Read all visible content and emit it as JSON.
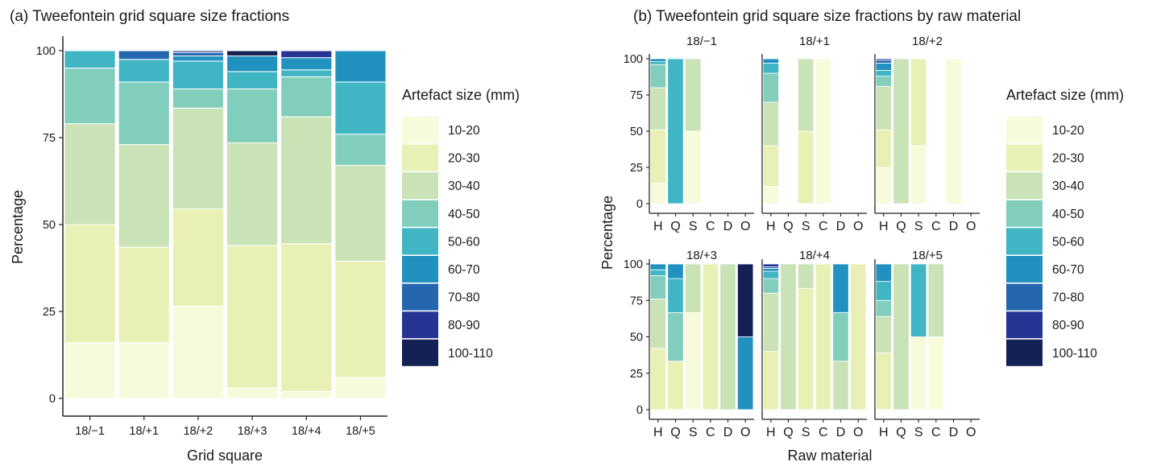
{
  "legend_colors": {
    "10-20": "#f7fbdb",
    "20-30": "#e9f0b5",
    "30-40": "#c9e2b6",
    "40-50": "#82cebc",
    "50-60": "#40b6c4",
    "60-70": "#2191c0",
    "70-80": "#2467af",
    "80-90": "#263594",
    "100-110": "#152055"
  },
  "chart_data": [
    {
      "type": "bar",
      "stacked": true,
      "title": "(a) Tweefontein grid square size fractions",
      "xlabel": "Grid square",
      "ylabel": "Percentage",
      "ylim": [
        0,
        100
      ],
      "yticks": [
        "0",
        "25",
        "50",
        "75",
        "100"
      ],
      "categories": [
        "18/−1",
        "18/+1",
        "18/+2",
        "18/+3",
        "18/+4",
        "18/+5"
      ],
      "legend_title": "Artefact size (mm)",
      "legend_position": "right",
      "series": [
        {
          "name": "10-20",
          "values": [
            16,
            16,
            26.5,
            3,
            2,
            6
          ]
        },
        {
          "name": "20-30",
          "values": [
            34,
            27.5,
            28,
            41,
            42.5,
            33.5
          ]
        },
        {
          "name": "30-40",
          "values": [
            29,
            29.5,
            29,
            29.5,
            36.5,
            27.5
          ]
        },
        {
          "name": "40-50",
          "values": [
            16,
            18,
            5.5,
            15.5,
            11.5,
            9
          ]
        },
        {
          "name": "50-60",
          "values": [
            5,
            6.5,
            8,
            5,
            2,
            15
          ]
        },
        {
          "name": "60-70",
          "values": [
            0,
            0,
            1.5,
            4.5,
            3.5,
            9
          ]
        },
        {
          "name": "70-80",
          "values": [
            0,
            2.5,
            1,
            0,
            0,
            0
          ]
        },
        {
          "name": "80-90",
          "values": [
            0,
            0,
            0.5,
            0,
            2,
            0
          ]
        },
        {
          "name": "100-110",
          "values": [
            0,
            0,
            0,
            1.5,
            0,
            0
          ]
        }
      ]
    },
    {
      "type": "bar",
      "stacked": true,
      "faceted": true,
      "title": "(b) Tweefontein grid square size fractions by raw material",
      "xlabel": "Raw material",
      "ylabel": "Percentage",
      "ylim": [
        0,
        100
      ],
      "yticks": [
        "0",
        "25",
        "50",
        "75",
        "100"
      ],
      "categories": [
        "H",
        "Q",
        "S",
        "C",
        "D",
        "O"
      ],
      "legend_title": "Artefact size (mm)",
      "legend_position": "right",
      "size_classes": [
        "10-20",
        "20-30",
        "30-40",
        "40-50",
        "50-60",
        "60-70",
        "70-80",
        "80-90",
        "100-110"
      ],
      "facets": [
        {
          "label": "18/−1",
          "bars": {
            "H": [
              14,
              37,
              29,
              16,
              2,
              2,
              0,
              0,
              0
            ],
            "Q": [
              0,
              0,
              0,
              0,
              100,
              0,
              0,
              0,
              0
            ],
            "S": [
              50,
              0,
              50,
              0,
              0,
              0,
              0,
              0,
              0
            ]
          }
        },
        {
          "label": "18/+1",
          "bars": {
            "H": [
              12,
              28,
              30,
              20,
              7,
              3,
              0,
              0,
              0
            ],
            "S": [
              0,
              50,
              50,
              0,
              0,
              0,
              0,
              0,
              0
            ],
            "C": [
              100,
              0,
              0,
              0,
              0,
              0,
              0,
              0,
              0
            ]
          }
        },
        {
          "label": "18/+2",
          "bars": {
            "H": [
              25,
              26,
              30,
              7,
              4,
              5,
              2,
              1,
              0
            ],
            "Q": [
              0,
              0,
              100,
              0,
              0,
              0,
              0,
              0,
              0
            ],
            "S": [
              40,
              60,
              0,
              0,
              0,
              0,
              0,
              0,
              0
            ],
            "D": [
              100,
              0,
              0,
              0,
              0,
              0,
              0,
              0,
              0
            ]
          }
        },
        {
          "label": "18/+3",
          "bars": {
            "H": [
              0,
              42,
              34,
              16,
              4,
              4,
              0,
              0,
              0
            ],
            "Q": [
              0,
              33.3,
              0,
              33.3,
              23.4,
              10,
              0,
              0,
              0
            ],
            "S": [
              66.7,
              0,
              33.3,
              0,
              0,
              0,
              0,
              0,
              0
            ],
            "C": [
              0,
              100,
              0,
              0,
              0,
              0,
              0,
              0,
              0
            ],
            "D": [
              0,
              0,
              100,
              0,
              0,
              0,
              0,
              0,
              0
            ],
            "O": [
              0,
              0,
              0,
              0,
              0,
              50,
              0,
              0,
              50
            ]
          }
        },
        {
          "label": "18/+4",
          "bars": {
            "H": [
              0,
              40,
              40,
              10,
              5,
              2,
              1,
              2,
              0
            ],
            "Q": [
              0,
              0,
              100,
              0,
              0,
              0,
              0,
              0,
              0
            ],
            "S": [
              0,
              83.3,
              16.7,
              0,
              0,
              0,
              0,
              0,
              0
            ],
            "C": [
              0,
              100,
              0,
              0,
              0,
              0,
              0,
              0,
              0
            ],
            "D": [
              0,
              0,
              33.3,
              33.4,
              0,
              33.3,
              0,
              0,
              0
            ],
            "O": [
              0,
              100,
              0,
              0,
              0,
              0,
              0,
              0,
              0
            ]
          }
        },
        {
          "label": "18/+5",
          "bars": {
            "H": [
              0,
              39,
              25,
              11,
              13,
              12,
              0,
              0,
              0
            ],
            "Q": [
              0,
              0,
              100,
              0,
              0,
              0,
              0,
              0,
              0
            ],
            "S": [
              50,
              0,
              0,
              0,
              50,
              0,
              0,
              0,
              0
            ],
            "C": [
              50,
              0,
              50,
              0,
              0,
              0,
              0,
              0,
              0
            ]
          }
        }
      ]
    }
  ]
}
